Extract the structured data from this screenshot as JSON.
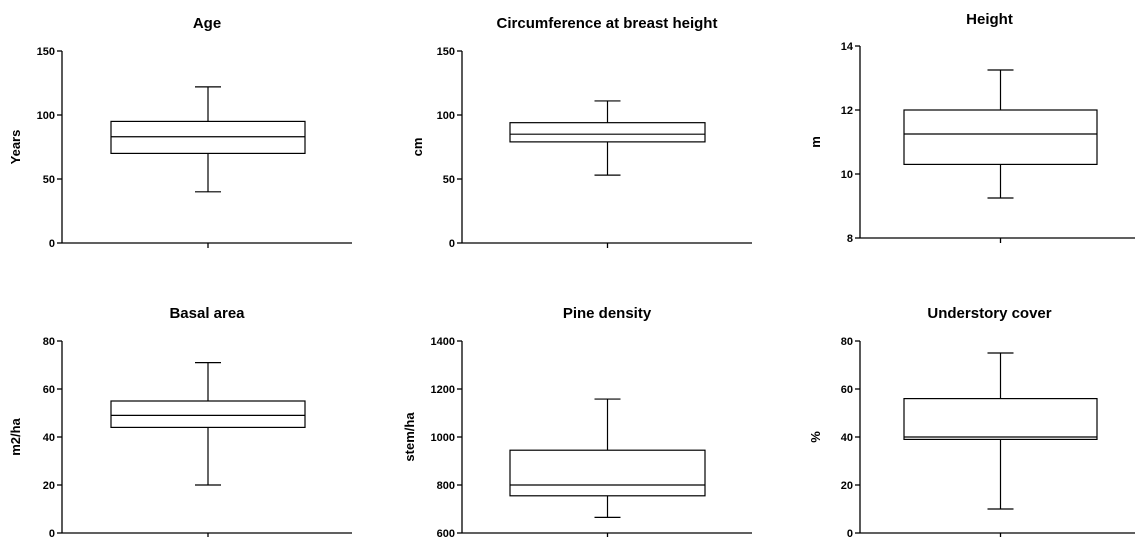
{
  "chart_data": [
    {
      "type": "box",
      "title": "Age",
      "ylabel": "Years",
      "ylim": [
        0,
        150
      ],
      "yticks": [
        0,
        50,
        100,
        150
      ],
      "box": {
        "min": 40,
        "q1": 70,
        "median": 83,
        "q3": 95,
        "max": 122
      }
    },
    {
      "type": "box",
      "title": "Circumference at breast height",
      "ylabel": "cm",
      "ylim": [
        0,
        150
      ],
      "yticks": [
        0,
        50,
        100,
        150
      ],
      "box": {
        "min": 53,
        "q1": 79,
        "median": 85,
        "q3": 94,
        "max": 111
      }
    },
    {
      "type": "box",
      "title": "Height",
      "ylabel": "m",
      "ylim": [
        8,
        14
      ],
      "yticks": [
        8,
        10,
        12,
        14
      ],
      "box": {
        "min": 9.25,
        "q1": 10.3,
        "median": 11.25,
        "q3": 12.0,
        "max": 13.25
      }
    },
    {
      "type": "box",
      "title": "Basal area",
      "ylabel": "m2/ha",
      "ylim": [
        0,
        80
      ],
      "yticks": [
        0,
        20,
        40,
        60,
        80
      ],
      "box": {
        "min": 20,
        "q1": 44,
        "median": 49,
        "q3": 55,
        "max": 71
      }
    },
    {
      "type": "box",
      "title": "Pine density",
      "ylabel": "stem/ha",
      "ylim": [
        600,
        1400
      ],
      "yticks": [
        600,
        800,
        1000,
        1200,
        1400
      ],
      "box": {
        "min": 665,
        "q1": 755,
        "median": 800,
        "q3": 945,
        "max": 1158
      }
    },
    {
      "type": "box",
      "title": "Understory cover",
      "ylabel": "%",
      "ylim": [
        0,
        80
      ],
      "yticks": [
        0,
        20,
        40,
        60,
        80
      ],
      "box": {
        "min": 10,
        "q1": 39,
        "median": 40,
        "q3": 56,
        "max": 75
      }
    }
  ]
}
